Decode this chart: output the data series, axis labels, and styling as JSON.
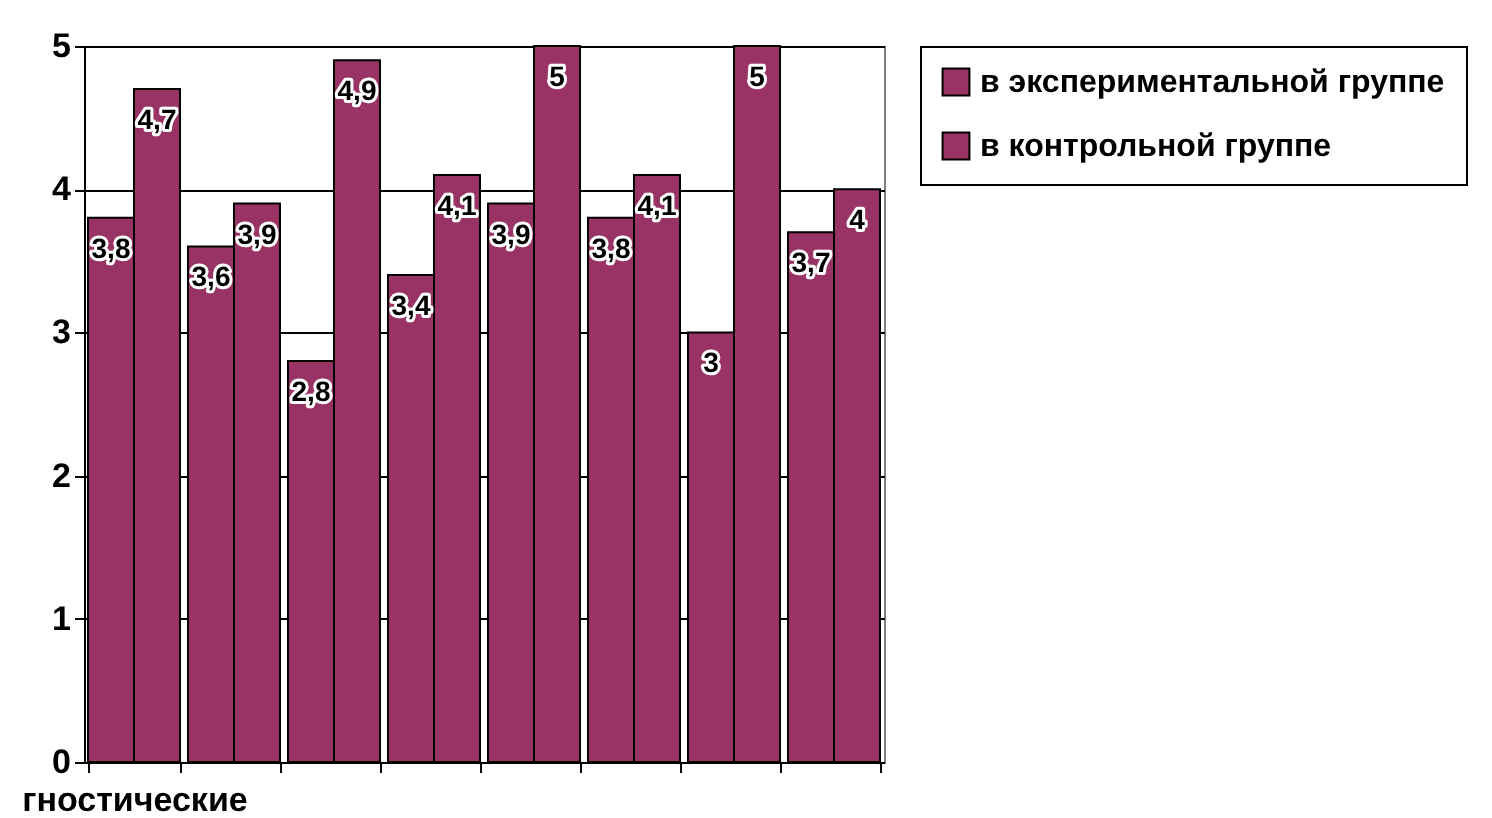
{
  "chart_data": {
    "type": "bar",
    "categories": [
      "гностические",
      null,
      null,
      null,
      null,
      null,
      null,
      null
    ],
    "series": [
      {
        "name": "в экспериментальной группе",
        "color": "#993366",
        "values": [
          3.8,
          3.6,
          2.8,
          3.4,
          3.9,
          3.8,
          3,
          3.7
        ],
        "value_labels": [
          "3,8",
          "3,6",
          "2,8",
          "3,4",
          "3,9",
          "3,8",
          "3",
          "3,7"
        ]
      },
      {
        "name": "в контрольной группе",
        "color": "#993366",
        "values": [
          4.7,
          3.9,
          4.9,
          4.1,
          5,
          4.1,
          5,
          4
        ],
        "value_labels": [
          "4,7",
          "3,9",
          "4,9",
          "4,1",
          "5",
          "4,1",
          "5",
          "4"
        ]
      }
    ],
    "ylim": [
      0,
      5
    ],
    "yticks": [
      0,
      1,
      2,
      3,
      4,
      5
    ],
    "grid": "y",
    "legend": "right"
  }
}
